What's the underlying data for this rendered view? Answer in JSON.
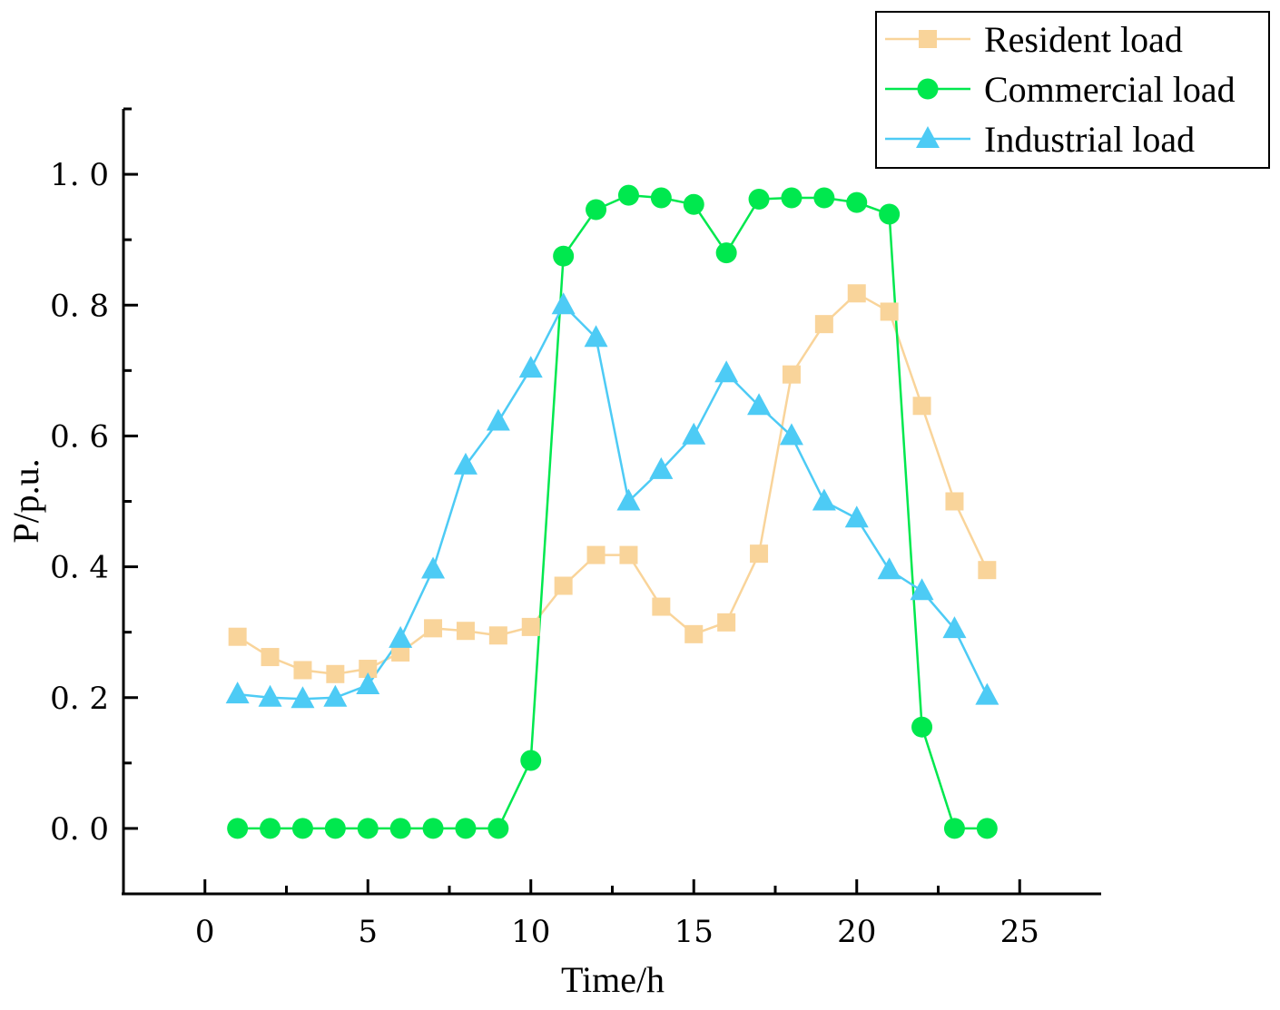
{
  "chart_data": {
    "type": "line",
    "title": "",
    "xlabel": "Time/h",
    "ylabel": "P/p.u.",
    "xlim": [
      -2.5,
      27.5
    ],
    "ylim": [
      -0.1,
      1.1
    ],
    "xticks": [
      0,
      5,
      10,
      15,
      20,
      25
    ],
    "xtick_labels": [
      "0",
      "5",
      "10",
      "15",
      "20",
      "25"
    ],
    "yticks": [
      0.0,
      0.2,
      0.4,
      0.6,
      0.8,
      1.0
    ],
    "ytick_labels": [
      "0. 0",
      "0. 2",
      "0. 4",
      "0. 6",
      "0. 8",
      "1. 0"
    ],
    "grid": false,
    "legend_position": "top-right",
    "x": [
      1,
      2,
      3,
      4,
      5,
      6,
      7,
      8,
      9,
      10,
      11,
      12,
      13,
      14,
      15,
      16,
      17,
      18,
      19,
      20,
      21,
      22,
      23,
      24
    ],
    "series": [
      {
        "name": "Resident load",
        "color": "#f9d49a",
        "marker": "square",
        "values": [
          0.293,
          0.262,
          0.242,
          0.236,
          0.244,
          0.269,
          0.306,
          0.302,
          0.295,
          0.308,
          0.371,
          0.418,
          0.418,
          0.339,
          0.297,
          0.315,
          0.42,
          0.694,
          0.771,
          0.818,
          0.79,
          0.646,
          0.5,
          0.395
        ]
      },
      {
        "name": "Commercial load",
        "color": "#00e84e",
        "marker": "circle",
        "values": [
          0,
          0,
          0,
          0,
          0,
          0,
          0,
          0,
          0,
          0.104,
          0.875,
          0.946,
          0.968,
          0.964,
          0.954,
          0.88,
          0.962,
          0.964,
          0.964,
          0.957,
          0.939,
          0.155,
          0,
          0
        ]
      },
      {
        "name": "Industrial load",
        "color": "#4dcbf5",
        "marker": "triangle",
        "values": [
          0.205,
          0.2,
          0.198,
          0.2,
          0.219,
          0.29,
          0.396,
          0.555,
          0.622,
          0.703,
          0.8,
          0.75,
          0.5,
          0.548,
          0.601,
          0.696,
          0.646,
          0.6,
          0.5,
          0.474,
          0.395,
          0.363,
          0.305,
          0.203
        ]
      }
    ]
  }
}
